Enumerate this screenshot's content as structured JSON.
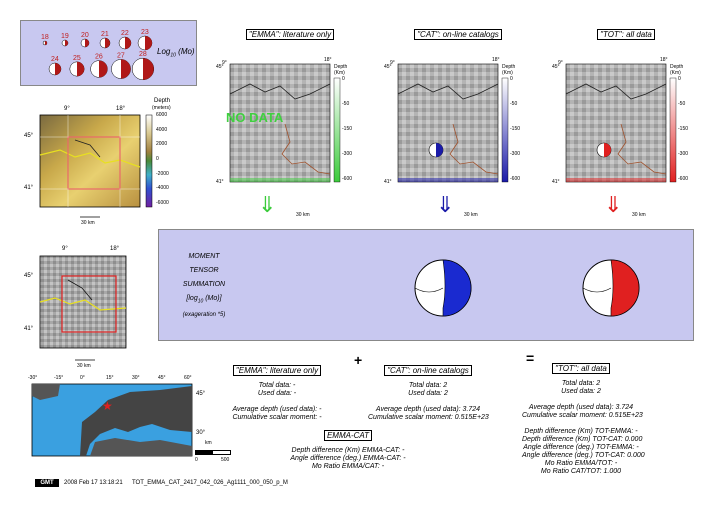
{
  "legend": {
    "log_label": "Log",
    "log_sub": "10",
    "log_unit": "(Mo)",
    "magnitudes_row1": [
      "18",
      "19",
      "20",
      "21",
      "22",
      "23"
    ],
    "magnitudes_row2": [
      "24",
      "25",
      "26",
      "27",
      "28"
    ]
  },
  "minimap_top": {
    "lon_labels": [
      "9°",
      "18°"
    ],
    "lat_labels": [
      "45°",
      "41°"
    ],
    "depth_title": "Depth",
    "depth_unit": "(meters)",
    "depth_ticks": [
      "6000",
      "4000",
      "2000",
      "0",
      "-2000",
      "-4000",
      "-6000"
    ],
    "scale_label": "30 km"
  },
  "minimap_mid": {
    "lon_labels": [
      "9°",
      "18°"
    ],
    "lat_labels": [
      "45°",
      "41°"
    ],
    "scale_label": "30 km"
  },
  "worldmap": {
    "lon_labels": [
      "-30°",
      "-15°",
      "0°",
      "15°",
      "30°",
      "45°",
      "60°"
    ],
    "lat_labels": [
      "45°",
      "30°"
    ],
    "scale_unit": "km",
    "scale_ticks": [
      "0",
      "500"
    ]
  },
  "panels": [
    {
      "title": "\"EMMA\": literature only",
      "color": "#3bcb3b",
      "depth_title": "Depth",
      "depth_unit": "(Km)",
      "ticks": [
        "0",
        "-50",
        "-150",
        "-300",
        "-600"
      ],
      "lon_labels": [
        "9°",
        "18°"
      ],
      "lat_labels": [
        "45°",
        "41°"
      ],
      "scale_label": "30 km",
      "overlay": "NO DATA",
      "arrow": "⇓"
    },
    {
      "title": "\"CAT\": on-line catalogs",
      "color": "#1a1aa8",
      "depth_title": "Depth",
      "depth_unit": "(Km)",
      "ticks": [
        "0",
        "-50",
        "-150",
        "-300",
        "-600"
      ],
      "lon_labels": [
        "9°",
        "18°"
      ],
      "lat_labels": [
        "45°",
        "41°"
      ],
      "scale_label": "30 km",
      "overlay": "",
      "arrow": "⇓"
    },
    {
      "title": "\"TOT\": all data",
      "color": "#e02020",
      "depth_title": "Depth",
      "depth_unit": "(Km)",
      "ticks": [
        "0",
        "-50",
        "-150",
        "-300",
        "-600"
      ],
      "lon_labels": [
        "9°",
        "18°"
      ],
      "lat_labels": [
        "45°",
        "41°"
      ],
      "scale_label": "30 km",
      "overlay": "",
      "arrow": "⇓"
    }
  ],
  "summary": {
    "lines": [
      "MOMENT",
      "TENSOR",
      "SUMMATION"
    ],
    "log_line": "[log",
    "log_sub": "10",
    "log_end": " (Mo)]",
    "exaggeration": "(exageration *5)"
  },
  "operators": {
    "plus": "+",
    "equals": "="
  },
  "stats": {
    "emma": {
      "title": "\"EMMA\": literature only",
      "lines": [
        "Total data: -",
        "Used data: -",
        "",
        "Average depth (used data): -",
        "Cumulative scalar moment: -"
      ]
    },
    "cat": {
      "title": "\"CAT\": on-line catalogs",
      "lines": [
        "Total data:    2",
        "Used data:    2",
        "",
        "Average depth (used data):    3.724",
        "Cumulative scalar moment: 0.515E+23"
      ]
    },
    "tot": {
      "title": "\"TOT\": all data",
      "lines": [
        "Total data:    2",
        "Used data:    2",
        "",
        "Average depth (used data):    3.724",
        "Cumulative scalar moment: 0.515E+23",
        "",
        "Depth difference (Km) TOT-EMMA: -",
        "Depth difference (Km) TOT-CAT:    0.000",
        "Angle difference (deg.) TOT-EMMA: -",
        "Angle difference (deg.) TOT-CAT:    0.000",
        "Mo Ratio EMMA/TOT: -",
        "Mo Ratio CAT/TOT:    1.000"
      ]
    },
    "emmacat": {
      "title": "EMMA-CAT",
      "lines": [
        "Depth difference (Km) EMMA-CAT: -",
        "Angle difference (deg.) EMMA-CAT: -",
        "Mo Ratio EMMA/CAT: -"
      ]
    }
  },
  "footer": {
    "logo": "GMT",
    "timestamp": "2008 Feb 17 13:18:21",
    "filename": "TOT_EMMA_CAT_2417_042_026_Ag1111_000_050_p_M"
  }
}
